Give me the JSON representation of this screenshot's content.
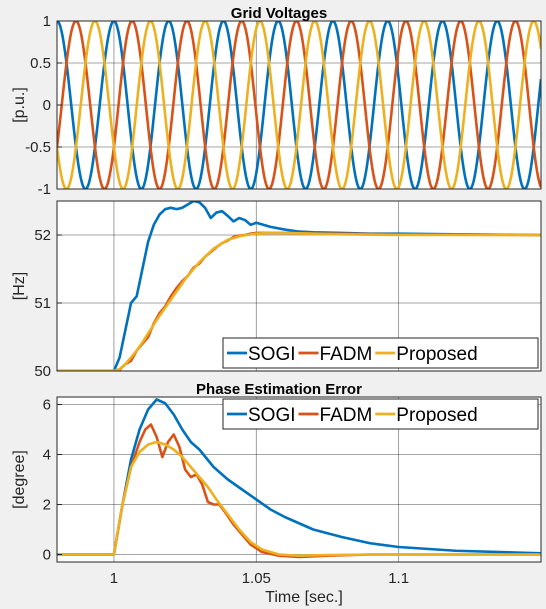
{
  "chart_data": [
    {
      "type": "line",
      "title": "Grid Voltages",
      "ylabel": "[p.u.]",
      "xlim": [
        0.98,
        1.15
      ],
      "ylim": [
        -1,
        1
      ],
      "yticks": [
        1,
        0.5,
        0,
        -0.5,
        -1
      ],
      "ytick_labels": [
        "1",
        "0.5",
        "0",
        "-0.5",
        "-1"
      ],
      "grid": true,
      "signals": {
        "frequency_before_hz": 50,
        "frequency_after_hz": 52,
        "step_time": 1.0,
        "phase_order": [
          "phase-a",
          "phase-b",
          "phase-c"
        ]
      },
      "series": [
        {
          "key": "phase-a",
          "color": "#0072BD",
          "amplitude": 1,
          "phase_deg": 0
        },
        {
          "key": "phase-b",
          "color": "#D95319",
          "amplitude": 1,
          "phase_deg": -120
        },
        {
          "key": "phase-c",
          "color": "#EDB120",
          "amplitude": 1,
          "phase_deg": 120
        }
      ]
    },
    {
      "type": "line",
      "title": "",
      "ylabel": "[Hz]",
      "xlim": [
        0.98,
        1.15
      ],
      "ylim": [
        50,
        52.5
      ],
      "yticks": [
        52,
        51,
        50
      ],
      "ytick_labels": [
        "52",
        "51",
        "50"
      ],
      "grid": true,
      "legend": {
        "placement": "bottom-right",
        "orientation": "horizontal"
      },
      "series": [
        {
          "name": "SOGI",
          "color": "#0072BD",
          "x": [
            0.98,
            1.0,
            1.002,
            1.004,
            1.006,
            1.008,
            1.01,
            1.012,
            1.014,
            1.016,
            1.018,
            1.02,
            1.022,
            1.024,
            1.026,
            1.028,
            1.03,
            1.032,
            1.034,
            1.036,
            1.038,
            1.04,
            1.042,
            1.044,
            1.046,
            1.048,
            1.05,
            1.055,
            1.06,
            1.065,
            1.07,
            1.08,
            1.09,
            1.1,
            1.12,
            1.15
          ],
          "y": [
            50.0,
            50.0,
            50.2,
            50.6,
            51.0,
            51.1,
            51.5,
            51.9,
            52.15,
            52.3,
            52.38,
            52.4,
            52.38,
            52.4,
            52.45,
            52.5,
            52.48,
            52.4,
            52.25,
            52.33,
            52.35,
            52.28,
            52.2,
            52.25,
            52.22,
            52.15,
            52.18,
            52.12,
            52.08,
            52.05,
            52.04,
            52.03,
            52.02,
            52.02,
            52.01,
            52.0
          ]
        },
        {
          "name": "FADM",
          "color": "#D95319",
          "x": [
            0.98,
            1.0,
            1.002,
            1.004,
            1.006,
            1.008,
            1.01,
            1.012,
            1.014,
            1.016,
            1.018,
            1.02,
            1.022,
            1.024,
            1.026,
            1.028,
            1.03,
            1.032,
            1.034,
            1.036,
            1.038,
            1.04,
            1.042,
            1.044,
            1.046,
            1.048,
            1.05,
            1.055,
            1.06,
            1.07,
            1.08,
            1.1,
            1.15
          ],
          "y": [
            50.0,
            50.0,
            50.02,
            50.1,
            50.15,
            50.3,
            50.4,
            50.5,
            50.7,
            50.85,
            50.95,
            51.1,
            51.22,
            51.32,
            51.4,
            51.52,
            51.58,
            51.68,
            51.75,
            51.82,
            51.88,
            51.92,
            51.97,
            51.99,
            52.0,
            52.02,
            52.03,
            52.03,
            52.03,
            52.02,
            52.02,
            52.01,
            52.0
          ]
        },
        {
          "name": "Proposed",
          "color": "#EDB120",
          "x": [
            0.98,
            1.0,
            1.002,
            1.004,
            1.006,
            1.008,
            1.01,
            1.015,
            1.02,
            1.025,
            1.03,
            1.035,
            1.04,
            1.045,
            1.05,
            1.055,
            1.06,
            1.07,
            1.08,
            1.1,
            1.15
          ],
          "y": [
            50.0,
            50.0,
            50.03,
            50.1,
            50.2,
            50.3,
            50.42,
            50.75,
            51.05,
            51.35,
            51.6,
            51.8,
            51.93,
            51.99,
            52.02,
            52.03,
            52.03,
            52.02,
            52.01,
            52.0,
            52.0
          ]
        }
      ]
    },
    {
      "type": "line",
      "title": "Phase Estimation Error",
      "ylabel": "[degree]",
      "xlabel": "Time [sec.]",
      "xlim": [
        0.98,
        1.15
      ],
      "xticks": [
        1,
        1.05,
        1.1
      ],
      "xtick_labels": [
        "1",
        "1.05",
        "1.1"
      ],
      "ylim": [
        -0.3,
        6.3
      ],
      "yticks": [
        6,
        4,
        2,
        0
      ],
      "ytick_labels": [
        "6",
        "4",
        "2",
        "0"
      ],
      "grid": true,
      "legend": {
        "placement": "top-right",
        "orientation": "horizontal"
      },
      "series": [
        {
          "name": "SOGI",
          "color": "#0072BD",
          "x": [
            0.98,
            1.0,
            1.003,
            1.006,
            1.009,
            1.012,
            1.015,
            1.018,
            1.021,
            1.024,
            1.027,
            1.03,
            1.035,
            1.04,
            1.045,
            1.05,
            1.055,
            1.06,
            1.07,
            1.08,
            1.09,
            1.1,
            1.12,
            1.15
          ],
          "y": [
            0.0,
            0.0,
            2.0,
            3.8,
            5.0,
            5.8,
            6.2,
            6.05,
            5.6,
            5.0,
            4.5,
            4.2,
            3.5,
            3.0,
            2.6,
            2.2,
            1.8,
            1.5,
            1.0,
            0.7,
            0.45,
            0.3,
            0.15,
            0.05
          ]
        },
        {
          "name": "FADM",
          "color": "#D95319",
          "x": [
            0.98,
            1.0,
            1.003,
            1.006,
            1.009,
            1.011,
            1.013,
            1.015,
            1.017,
            1.019,
            1.021,
            1.023,
            1.025,
            1.027,
            1.029,
            1.031,
            1.033,
            1.035,
            1.037,
            1.039,
            1.042,
            1.045,
            1.048,
            1.052,
            1.058,
            1.065,
            1.075,
            1.09,
            1.15
          ],
          "y": [
            0.0,
            0.0,
            2.0,
            3.5,
            4.5,
            5.0,
            5.2,
            4.7,
            3.9,
            4.5,
            4.8,
            4.3,
            3.4,
            3.1,
            3.2,
            2.8,
            2.1,
            2.0,
            2.0,
            1.7,
            1.2,
            0.8,
            0.4,
            0.1,
            -0.05,
            -0.1,
            -0.05,
            0.0,
            0.0
          ]
        },
        {
          "name": "Proposed",
          "color": "#EDB120",
          "x": [
            0.98,
            1.0,
            1.003,
            1.006,
            1.009,
            1.012,
            1.015,
            1.018,
            1.021,
            1.024,
            1.027,
            1.03,
            1.033,
            1.036,
            1.04,
            1.044,
            1.048,
            1.052,
            1.058,
            1.065,
            1.075,
            1.09,
            1.15
          ],
          "y": [
            0.0,
            0.0,
            2.0,
            3.5,
            4.1,
            4.4,
            4.5,
            4.4,
            4.2,
            3.9,
            3.5,
            3.1,
            2.7,
            2.2,
            1.6,
            1.0,
            0.5,
            0.2,
            0.0,
            -0.05,
            -0.02,
            0.0,
            0.0
          ]
        }
      ]
    }
  ]
}
